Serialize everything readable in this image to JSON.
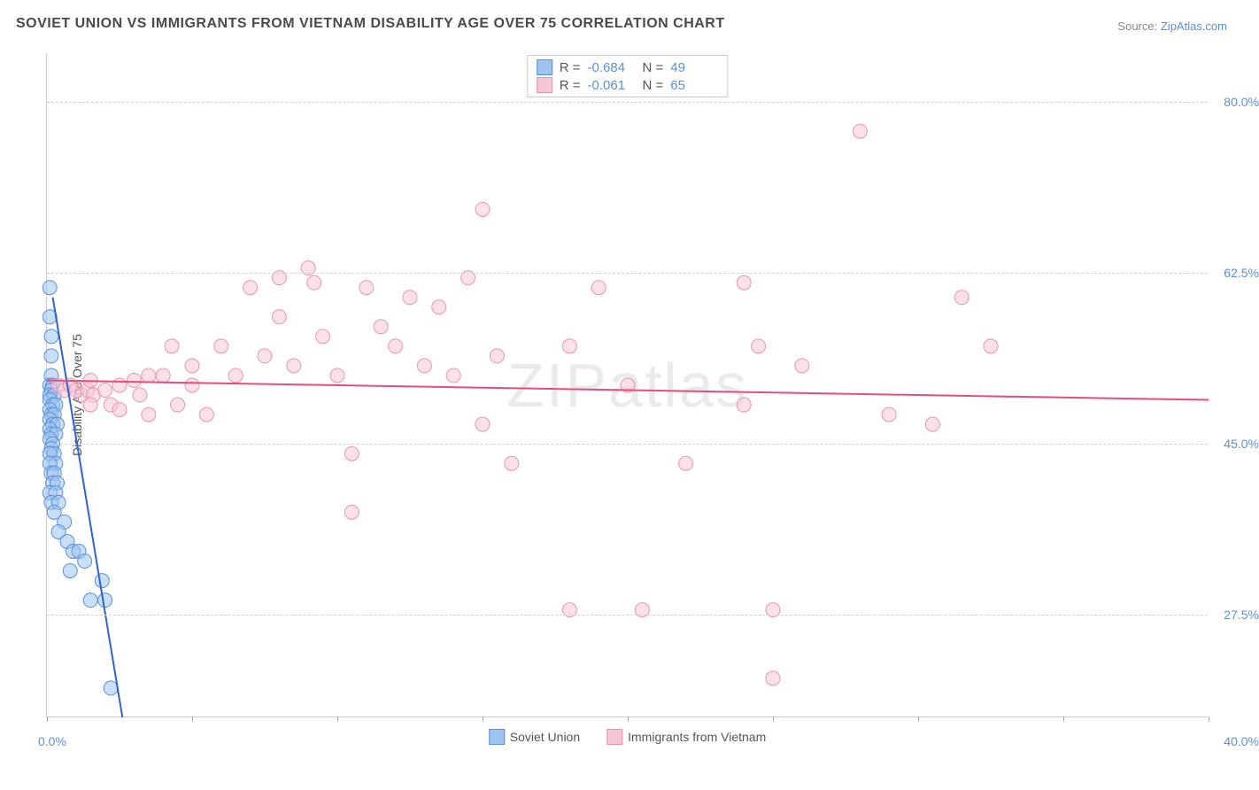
{
  "title": "SOVIET UNION VS IMMIGRANTS FROM VIETNAM DISABILITY AGE OVER 75 CORRELATION CHART",
  "source_label": "Source:",
  "source_name": "ZipAtlas.com",
  "ylabel": "Disability Age Over 75",
  "watermark": "ZIPatlas",
  "chart": {
    "type": "scatter",
    "xlim": [
      0,
      40
    ],
    "ylim": [
      17,
      85
    ],
    "xticks_pos": [
      0,
      5,
      10,
      15,
      20,
      25,
      30,
      35,
      40
    ],
    "xticks_labels": {
      "0": "0.0%",
      "40": "40.0%"
    },
    "yticks": [
      27.5,
      45.0,
      62.5,
      80.0
    ],
    "ytick_labels": [
      "27.5%",
      "45.0%",
      "62.5%",
      "80.0%"
    ],
    "background_color": "#ffffff",
    "grid_color": "#d0d0d0",
    "marker_radius": 8,
    "marker_opacity": 0.55,
    "series": [
      {
        "name": "Soviet Union",
        "color_fill": "#9dc3f0",
        "color_stroke": "#5b8fd6",
        "R": "-0.684",
        "N": "49",
        "trend": {
          "x1": 0.2,
          "y1": 60,
          "x2": 2.6,
          "y2": 17,
          "stroke": "#2e63c9",
          "width": 2
        },
        "points": [
          [
            0.1,
            61
          ],
          [
            0.1,
            58
          ],
          [
            0.15,
            56
          ],
          [
            0.15,
            54
          ],
          [
            0.15,
            52
          ],
          [
            0.1,
            51
          ],
          [
            0.2,
            51
          ],
          [
            0.15,
            50.5
          ],
          [
            0.1,
            50
          ],
          [
            0.25,
            50
          ],
          [
            0.1,
            49.5
          ],
          [
            0.2,
            49
          ],
          [
            0.3,
            49
          ],
          [
            0.1,
            48.5
          ],
          [
            0.15,
            48
          ],
          [
            0.25,
            48
          ],
          [
            0.1,
            47.5
          ],
          [
            0.2,
            47
          ],
          [
            0.35,
            47
          ],
          [
            0.1,
            46.5
          ],
          [
            0.15,
            46
          ],
          [
            0.3,
            46
          ],
          [
            0.1,
            45.5
          ],
          [
            0.2,
            45
          ],
          [
            0.15,
            44.5
          ],
          [
            0.25,
            44
          ],
          [
            0.1,
            44
          ],
          [
            0.3,
            43
          ],
          [
            0.1,
            43
          ],
          [
            0.15,
            42
          ],
          [
            0.25,
            42
          ],
          [
            0.2,
            41
          ],
          [
            0.35,
            41
          ],
          [
            0.1,
            40
          ],
          [
            0.3,
            40
          ],
          [
            0.15,
            39
          ],
          [
            0.4,
            39
          ],
          [
            0.25,
            38
          ],
          [
            0.6,
            37
          ],
          [
            0.4,
            36
          ],
          [
            0.7,
            35
          ],
          [
            0.9,
            34
          ],
          [
            1.1,
            34
          ],
          [
            1.3,
            33
          ],
          [
            0.8,
            32
          ],
          [
            1.9,
            31
          ],
          [
            2.0,
            29
          ],
          [
            1.5,
            29
          ],
          [
            2.2,
            20
          ]
        ]
      },
      {
        "name": "Immigrants from Vietnam",
        "color_fill": "#f5c6d6",
        "color_stroke": "#e695b0",
        "R": "-0.061",
        "N": "65",
        "trend": {
          "x1": 0,
          "y1": 51.5,
          "x2": 40,
          "y2": 49.5,
          "stroke": "#e84a84",
          "width": 2
        },
        "points": [
          [
            0.4,
            51
          ],
          [
            0.6,
            50.5
          ],
          [
            0.8,
            51
          ],
          [
            1.0,
            50.5
          ],
          [
            1.2,
            50
          ],
          [
            1.4,
            50.5
          ],
          [
            1.6,
            50
          ],
          [
            1.5,
            49
          ],
          [
            1.5,
            51.5
          ],
          [
            2.0,
            50.5
          ],
          [
            2.2,
            49
          ],
          [
            2.5,
            51
          ],
          [
            2.5,
            48.5
          ],
          [
            3.0,
            51.5
          ],
          [
            3.2,
            50
          ],
          [
            3.5,
            52
          ],
          [
            3.5,
            48
          ],
          [
            4,
            52
          ],
          [
            4.3,
            55
          ],
          [
            4.5,
            49
          ],
          [
            5,
            51
          ],
          [
            5,
            53
          ],
          [
            5.5,
            48
          ],
          [
            6,
            55
          ],
          [
            6.5,
            52
          ],
          [
            7,
            61
          ],
          [
            7.5,
            54
          ],
          [
            8,
            62
          ],
          [
            8,
            58
          ],
          [
            8.5,
            53
          ],
          [
            9,
            63
          ],
          [
            9.2,
            61.5
          ],
          [
            9.5,
            56
          ],
          [
            10,
            52
          ],
          [
            10.5,
            44
          ],
          [
            10.5,
            38
          ],
          [
            11,
            61
          ],
          [
            11.5,
            57
          ],
          [
            12,
            55
          ],
          [
            12.5,
            60
          ],
          [
            13,
            53
          ],
          [
            13.5,
            59
          ],
          [
            14,
            52
          ],
          [
            14.5,
            62
          ],
          [
            15,
            47
          ],
          [
            15,
            69
          ],
          [
            15.5,
            54
          ],
          [
            16,
            43
          ],
          [
            18,
            28
          ],
          [
            18,
            55
          ],
          [
            19,
            61
          ],
          [
            20,
            51
          ],
          [
            20.5,
            28
          ],
          [
            22,
            43
          ],
          [
            24,
            49
          ],
          [
            24,
            61.5
          ],
          [
            24.5,
            55
          ],
          [
            25,
            21
          ],
          [
            25,
            28
          ],
          [
            26,
            53
          ],
          [
            28,
            77
          ],
          [
            29,
            48
          ],
          [
            30.5,
            47
          ],
          [
            31.5,
            60
          ],
          [
            32.5,
            55
          ]
        ]
      }
    ]
  },
  "colors": {
    "axis_text": "#5b8fd6",
    "ytick_text": "#5b8fd6"
  }
}
